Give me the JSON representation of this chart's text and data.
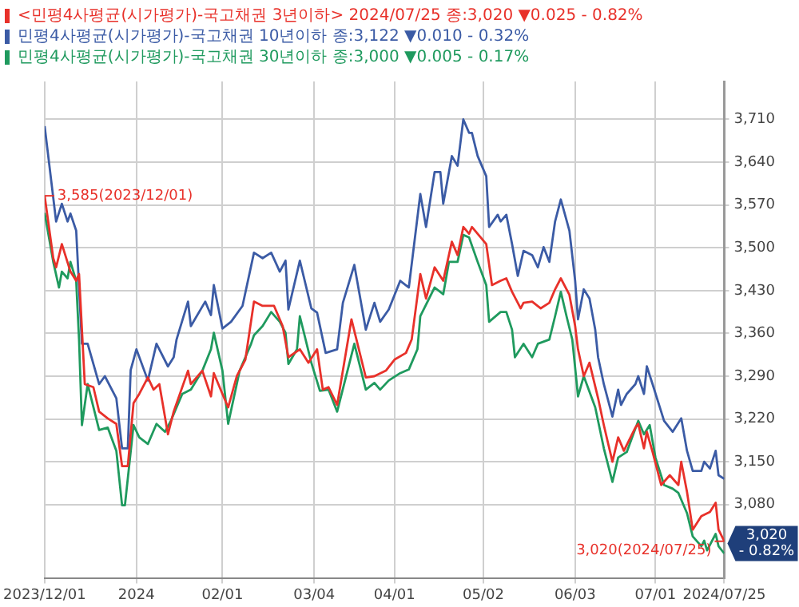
{
  "chart_data": {
    "type": "line",
    "xlim": [
      "2023-12-01",
      "2024-07-25"
    ],
    "xticks": [
      {
        "value": "2023-12-01",
        "label": "2023/12/01"
      },
      {
        "value": "2024-01-02",
        "label": "2024"
      },
      {
        "value": "2024-02-01",
        "label": "02/01"
      },
      {
        "value": "2024-03-04",
        "label": "03/04"
      },
      {
        "value": "2024-04-01",
        "label": "04/01"
      },
      {
        "value": "2024-05-02",
        "label": "05/02"
      },
      {
        "value": "2024-06-03",
        "label": "06/03"
      },
      {
        "value": "2024-07-01",
        "label": "07/01"
      },
      {
        "value": "2024-07-25",
        "label": "2024/07/25"
      }
    ],
    "ylim": [
      2959,
      3772
    ],
    "yticks": [
      {
        "value": 3080,
        "label": "3,080"
      },
      {
        "value": 3150,
        "label": "3,150"
      },
      {
        "value": 3220,
        "label": "3,220"
      },
      {
        "value": 3290,
        "label": "3,290"
      },
      {
        "value": 3360,
        "label": "3,360"
      },
      {
        "value": 3430,
        "label": "3,430"
      },
      {
        "value": 3500,
        "label": "3,500"
      },
      {
        "value": 3570,
        "label": "3,570"
      },
      {
        "value": 3640,
        "label": "3,640"
      },
      {
        "value": 3710,
        "label": "3,710"
      }
    ],
    "grid": true,
    "legend": "top left",
    "annotations": [
      {
        "text": "3,585(2023/12/01)",
        "x": "2023-12-01",
        "y": 3585
      },
      {
        "text": "3,020(2024/07/25)",
        "x": "2024-07-25",
        "y": 3020
      },
      "3,020\n- 0.82%"
    ],
    "series": [
      {
        "name": "<민평4사평균(시가평가)-국고채권 3년이하> 2024/07/25 종:3,020 ▼0.025 - 0.82%",
        "color": "#e8312a",
        "x": [
          "2023-12-01",
          "2023-12-04",
          "2023-12-05",
          "2023-12-07",
          "2023-12-10",
          "2023-12-12",
          "2023-12-13",
          "2023-12-15",
          "2023-12-18",
          "2023-12-20",
          "2023-12-23",
          "2023-12-26",
          "2023-12-28",
          "2023-12-30",
          "2024-01-01",
          "2024-01-03",
          "2024-01-06",
          "2024-01-08",
          "2024-01-10",
          "2024-01-13",
          "2024-01-15",
          "2024-01-20",
          "2024-01-21",
          "2024-01-25",
          "2024-01-28",
          "2024-01-29",
          "2024-02-01",
          "2024-02-03",
          "2024-02-06",
          "2024-02-09",
          "2024-02-12",
          "2024-02-15",
          "2024-02-19",
          "2024-02-22",
          "2024-02-24",
          "2024-02-28",
          "2024-03-02",
          "2024-03-05",
          "2024-03-07",
          "2024-03-09",
          "2024-03-12",
          "2024-03-17",
          "2024-03-22",
          "2024-03-25",
          "2024-03-29",
          "2024-04-01",
          "2024-04-05",
          "2024-04-07",
          "2024-04-10",
          "2024-04-12",
          "2024-04-15",
          "2024-04-18",
          "2024-04-21",
          "2024-04-23",
          "2024-04-25",
          "2024-04-27",
          "2024-04-28",
          "2024-05-03",
          "2024-05-05",
          "2024-05-08",
          "2024-05-10",
          "2024-05-12",
          "2024-05-15",
          "2024-05-16",
          "2024-05-19",
          "2024-05-22",
          "2024-05-25",
          "2024-05-27",
          "2024-05-29",
          "2024-06-01",
          "2024-06-03",
          "2024-06-04",
          "2024-06-06",
          "2024-06-08",
          "2024-06-11",
          "2024-06-13",
          "2024-06-16",
          "2024-06-18",
          "2024-06-20",
          "2024-06-24",
          "2024-06-25",
          "2024-06-27",
          "2024-06-28",
          "2024-06-30",
          "2024-07-03",
          "2024-07-06",
          "2024-07-09",
          "2024-07-10",
          "2024-07-12",
          "2024-07-14",
          "2024-07-17",
          "2024-07-20",
          "2024-07-22",
          "2024-07-23",
          "2024-07-25"
        ],
        "values": [
          3585,
          3483,
          3468,
          3506,
          3461,
          3446,
          3457,
          3277,
          3272,
          3232,
          3221,
          3212,
          3143,
          3143,
          3246,
          3261,
          3288,
          3268,
          3277,
          3195,
          3232,
          3299,
          3277,
          3299,
          3257,
          3295,
          3261,
          3239,
          3290,
          3317,
          3412,
          3405,
          3405,
          3372,
          3321,
          3334,
          3312,
          3334,
          3268,
          3272,
          3243,
          3383,
          3288,
          3290,
          3299,
          3317,
          3328,
          3350,
          3457,
          3417,
          3468,
          3446,
          3510,
          3488,
          3534,
          3523,
          3534,
          3506,
          3439,
          3446,
          3450,
          3428,
          3401,
          3410,
          3412,
          3401,
          3410,
          3432,
          3450,
          3423,
          3372,
          3334,
          3290,
          3312,
          3254,
          3210,
          3150,
          3190,
          3168,
          3206,
          3212,
          3172,
          3199,
          3166,
          3112,
          3128,
          3112,
          3150,
          3101,
          3039,
          3061,
          3068,
          3083,
          3039,
          3020
        ]
      },
      {
        "name": "민평4사평균(시가평가)-국고채권 10년이하 종:3,122 ▼0.010 - 0.32%",
        "color": "#3b5ba5",
        "x": [
          "2023-12-01",
          "2023-12-05",
          "2023-12-07",
          "2023-12-09",
          "2023-12-10",
          "2023-12-12",
          "2023-12-14",
          "2023-12-16",
          "2023-12-20",
          "2023-12-22",
          "2023-12-26",
          "2023-12-28",
          "2023-12-30",
          "2023-12-31",
          "2024-01-02",
          "2024-01-06",
          "2024-01-09",
          "2024-01-13",
          "2024-01-15",
          "2024-01-16",
          "2024-01-20",
          "2024-01-21",
          "2024-01-26",
          "2024-01-28",
          "2024-01-29",
          "2024-02-01",
          "2024-02-04",
          "2024-02-08",
          "2024-02-12",
          "2024-02-15",
          "2024-02-18",
          "2024-02-21",
          "2024-02-23",
          "2024-02-24",
          "2024-02-28",
          "2024-03-03",
          "2024-03-05",
          "2024-03-08",
          "2024-03-12",
          "2024-03-14",
          "2024-03-18",
          "2024-03-22",
          "2024-03-25",
          "2024-03-27",
          "2024-03-30",
          "2024-04-03",
          "2024-04-06",
          "2024-04-10",
          "2024-04-12",
          "2024-04-15",
          "2024-04-17",
          "2024-04-18",
          "2024-04-21",
          "2024-04-23",
          "2024-04-25",
          "2024-04-27",
          "2024-04-28",
          "2024-04-30",
          "2024-05-03",
          "2024-05-04",
          "2024-05-07",
          "2024-05-08",
          "2024-05-10",
          "2024-05-12",
          "2024-05-14",
          "2024-05-16",
          "2024-05-19",
          "2024-05-21",
          "2024-05-23",
          "2024-05-25",
          "2024-05-27",
          "2024-05-29",
          "2024-06-01",
          "2024-06-03",
          "2024-06-04",
          "2024-06-06",
          "2024-06-08",
          "2024-06-10",
          "2024-06-11",
          "2024-06-13",
          "2024-06-16",
          "2024-06-18",
          "2024-06-19",
          "2024-06-21",
          "2024-06-24",
          "2024-06-25",
          "2024-06-27",
          "2024-06-28",
          "2024-06-30",
          "2024-07-04",
          "2024-07-07",
          "2024-07-10",
          "2024-07-12",
          "2024-07-14",
          "2024-07-17",
          "2024-07-18",
          "2024-07-20",
          "2024-07-22",
          "2024-07-23",
          "2024-07-25"
        ],
        "values": [
          3699,
          3543,
          3572,
          3543,
          3556,
          3528,
          3343,
          3343,
          3277,
          3290,
          3254,
          3172,
          3172,
          3300,
          3334,
          3283,
          3343,
          3306,
          3321,
          3350,
          3412,
          3372,
          3412,
          3390,
          3439,
          3368,
          3379,
          3405,
          3492,
          3483,
          3492,
          3461,
          3479,
          3399,
          3479,
          3401,
          3394,
          3328,
          3334,
          3410,
          3472,
          3366,
          3410,
          3379,
          3399,
          3446,
          3435,
          3588,
          3534,
          3624,
          3624,
          3572,
          3650,
          3634,
          3710,
          3688,
          3688,
          3650,
          3617,
          3534,
          3554,
          3543,
          3554,
          3506,
          3454,
          3495,
          3488,
          3468,
          3501,
          3477,
          3543,
          3579,
          3528,
          3446,
          3383,
          3432,
          3417,
          3366,
          3321,
          3277,
          3224,
          3268,
          3243,
          3261,
          3277,
          3290,
          3261,
          3306,
          3277,
          3217,
          3199,
          3221,
          3168,
          3135,
          3135,
          3150,
          3139,
          3168,
          3128,
          3122
        ]
      },
      {
        "name": "민평4사평균(시가평가)-국고채권 30년이하 종:3,000 ▼0.005 - 0.17%",
        "color": "#1f9a5e",
        "x": [
          "2023-12-01",
          "2023-12-04",
          "2023-12-06",
          "2023-12-07",
          "2023-12-09",
          "2023-12-10",
          "2023-12-12",
          "2023-12-13",
          "2023-12-14",
          "2023-12-16",
          "2023-12-20",
          "2023-12-23",
          "2023-12-26",
          "2023-12-28",
          "2023-12-29",
          "2024-01-01",
          "2024-01-03",
          "2024-01-06",
          "2024-01-09",
          "2024-01-12",
          "2024-01-14",
          "2024-01-18",
          "2024-01-21",
          "2024-01-25",
          "2024-01-28",
          "2024-01-29",
          "2024-02-01",
          "2024-02-03",
          "2024-02-07",
          "2024-02-11",
          "2024-02-12",
          "2024-02-15",
          "2024-02-18",
          "2024-02-21",
          "2024-02-23",
          "2024-02-24",
          "2024-02-27",
          "2024-02-28",
          "2024-03-03",
          "2024-03-06",
          "2024-03-09",
          "2024-03-12",
          "2024-03-18",
          "2024-03-22",
          "2024-03-25",
          "2024-03-27",
          "2024-03-30",
          "2024-04-03",
          "2024-04-06",
          "2024-04-09",
          "2024-04-10",
          "2024-04-15",
          "2024-04-18",
          "2024-04-20",
          "2024-04-23",
          "2024-04-25",
          "2024-04-27",
          "2024-04-30",
          "2024-05-03",
          "2024-05-04",
          "2024-05-08",
          "2024-05-10",
          "2024-05-12",
          "2024-05-13",
          "2024-05-16",
          "2024-05-19",
          "2024-05-21",
          "2024-05-25",
          "2024-05-27",
          "2024-05-29",
          "2024-05-31",
          "2024-06-02",
          "2024-06-04",
          "2024-06-06",
          "2024-06-10",
          "2024-06-13",
          "2024-06-16",
          "2024-06-18",
          "2024-06-21",
          "2024-06-25",
          "2024-06-27",
          "2024-06-29",
          "2024-07-01",
          "2024-07-04",
          "2024-07-07",
          "2024-07-09",
          "2024-07-12",
          "2024-07-14",
          "2024-07-17",
          "2024-07-18",
          "2024-07-19",
          "2024-07-22",
          "2024-07-23",
          "2024-07-25"
        ],
        "values": [
          3557,
          3477,
          3435,
          3461,
          3450,
          3477,
          3446,
          3350,
          3210,
          3277,
          3202,
          3206,
          3168,
          3079,
          3079,
          3210,
          3190,
          3179,
          3212,
          3199,
          3217,
          3261,
          3268,
          3299,
          3334,
          3361,
          3299,
          3212,
          3299,
          3343,
          3357,
          3372,
          3395,
          3379,
          3361,
          3310,
          3334,
          3388,
          3312,
          3266,
          3268,
          3232,
          3343,
          3268,
          3279,
          3268,
          3283,
          3295,
          3301,
          3334,
          3388,
          3435,
          3424,
          3477,
          3477,
          3521,
          3517,
          3477,
          3439,
          3379,
          3395,
          3395,
          3366,
          3321,
          3343,
          3321,
          3343,
          3350,
          3388,
          3428,
          3388,
          3350,
          3257,
          3290,
          3239,
          3172,
          3117,
          3157,
          3166,
          3217,
          3195,
          3210,
          3157,
          3112,
          3106,
          3099,
          3066,
          3028,
          3012,
          3021,
          3005,
          3032,
          3012,
          3000
        ]
      }
    ]
  }
}
